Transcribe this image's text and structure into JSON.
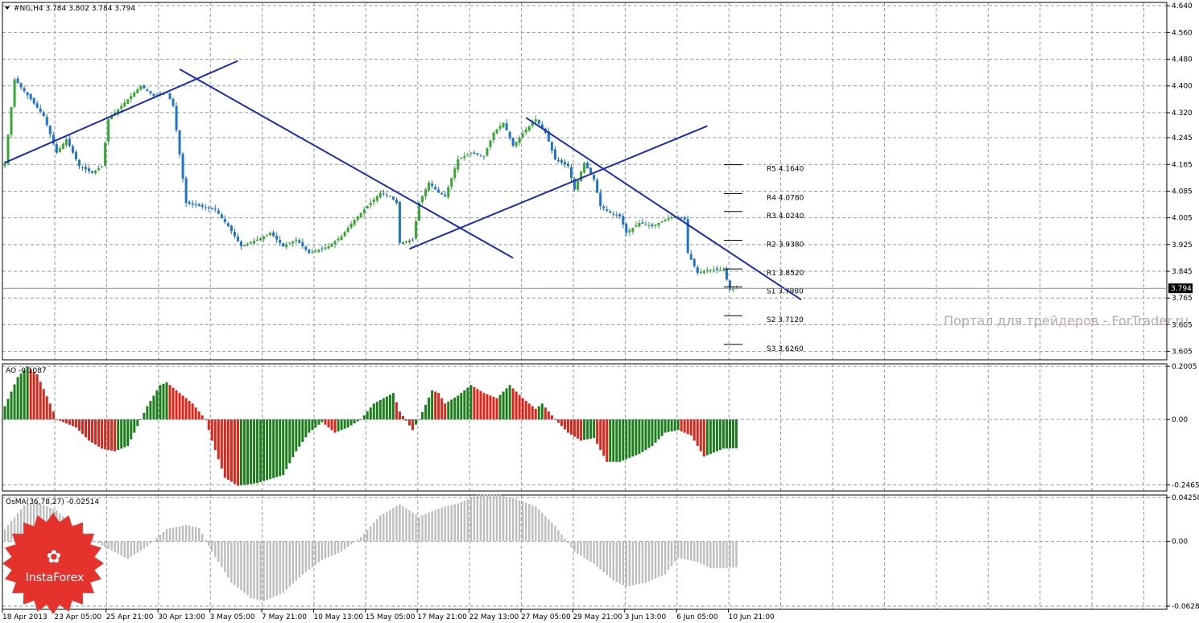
{
  "colors": {
    "background": "#ffffff",
    "grid": "#8a9ab0",
    "bull_candle": "#3aa532",
    "bear_candle": "#1f73c8",
    "trendline": "#1b2bb3",
    "ao_up": "#1c7d1c",
    "ao_down": "#e0241a",
    "osma": "#bdbdbd",
    "watermark": "#bfa9a9",
    "logo": "#e5322d"
  },
  "chart_data": [
    {
      "type": "candlestick",
      "panel": "main",
      "title": "#NG,H4  3.784 3.802 3.784 3.794",
      "ylim": [
        3.58,
        4.65
      ],
      "y_ticks": [
        "4.640",
        "4.560",
        "4.480",
        "4.400",
        "4.320",
        "4.245",
        "4.165",
        "4.085",
        "4.005",
        "3.925",
        "3.845",
        "3.765",
        "3.685",
        "3.605"
      ],
      "current_price": "3.794",
      "x_labels": [
        "18 Apr 2013",
        "23 Apr 05:00",
        "25 Apr 21:00",
        "30 Apr 13:00",
        "3 May 05:00",
        "7 May 21:00",
        "10 May 13:00",
        "15 May 05:00",
        "17 May 21:00",
        "22 May 13:00",
        "27 May 05:00",
        "29 May 21:00",
        "3 Jun 13:00",
        "6 Jun 05:00",
        "10 Jun 21:00"
      ],
      "anchors": [
        [
          0,
          4.17
        ],
        [
          3,
          4.42
        ],
        [
          8,
          4.36
        ],
        [
          12,
          4.31
        ],
        [
          16,
          4.2
        ],
        [
          19,
          4.24
        ],
        [
          23,
          4.16
        ],
        [
          27,
          4.14
        ],
        [
          30,
          4.16
        ],
        [
          32,
          4.3
        ],
        [
          38,
          4.36
        ],
        [
          42,
          4.4
        ],
        [
          46,
          4.37
        ],
        [
          50,
          4.38
        ],
        [
          52,
          4.34
        ],
        [
          56,
          4.05
        ],
        [
          60,
          4.04
        ],
        [
          65,
          4.03
        ],
        [
          69,
          3.98
        ],
        [
          73,
          3.92
        ],
        [
          78,
          3.94
        ],
        [
          82,
          3.96
        ],
        [
          86,
          3.92
        ],
        [
          90,
          3.94
        ],
        [
          94,
          3.9
        ],
        [
          100,
          3.92
        ],
        [
          104,
          3.95
        ],
        [
          108,
          4.0
        ],
        [
          112,
          4.04
        ],
        [
          116,
          4.08
        ],
        [
          119,
          4.07
        ],
        [
          121,
          4.05
        ],
        [
          122,
          3.93
        ],
        [
          126,
          3.94
        ],
        [
          128,
          4.05
        ],
        [
          131,
          4.11
        ],
        [
          134,
          4.08
        ],
        [
          136,
          4.07
        ],
        [
          140,
          4.18
        ],
        [
          144,
          4.2
        ],
        [
          148,
          4.19
        ],
        [
          151,
          4.26
        ],
        [
          154,
          4.29
        ],
        [
          157,
          4.22
        ],
        [
          161,
          4.27
        ],
        [
          164,
          4.3
        ],
        [
          167,
          4.26
        ],
        [
          170,
          4.18
        ],
        [
          174,
          4.16
        ],
        [
          176,
          4.09
        ],
        [
          179,
          4.17
        ],
        [
          182,
          4.12
        ],
        [
          184,
          4.04
        ],
        [
          187,
          4.02
        ],
        [
          190,
          4.01
        ],
        [
          192,
          3.96
        ],
        [
          196,
          3.99
        ],
        [
          200,
          3.98
        ],
        [
          204,
          4.0
        ],
        [
          207,
          4.01
        ],
        [
          210,
          4.0
        ],
        [
          211,
          3.9
        ],
        [
          214,
          3.84
        ],
        [
          218,
          3.85
        ],
        [
          222,
          3.85
        ],
        [
          224,
          3.79
        ],
        [
          226,
          3.794
        ]
      ],
      "pivots": [
        {
          "label": "R5 4.1640",
          "value": 4.164
        },
        {
          "label": "R4 4.0780",
          "value": 4.078
        },
        {
          "label": "R3 4.0240",
          "value": 4.024
        },
        {
          "label": "R2 3.9380",
          "value": 3.938
        },
        {
          "label": "R1 3.8520",
          "value": 3.852
        },
        {
          "label": "S1 3.7980",
          "value": 3.798
        },
        {
          "label": "S2 3.7120",
          "value": 3.712
        },
        {
          "label": "S3 3.6260",
          "value": 3.626
        }
      ],
      "watermark": "Портал для трейдеров - ForTrader.ru"
    },
    {
      "type": "histogram",
      "panel": "AO",
      "title": "AO -0.1087",
      "ylim": [
        -0.27,
        0.21
      ],
      "y_ticks": [
        "0.2005",
        "0.00",
        "-0.2465"
      ],
      "anchors": [
        [
          0,
          0.05
        ],
        [
          4,
          0.16
        ],
        [
          7,
          0.2
        ],
        [
          10,
          0.17
        ],
        [
          14,
          0.06
        ],
        [
          16,
          0.0
        ],
        [
          18,
          -0.01
        ],
        [
          22,
          -0.03
        ],
        [
          26,
          -0.08
        ],
        [
          30,
          -0.11
        ],
        [
          34,
          -0.12
        ],
        [
          38,
          -0.1
        ],
        [
          40,
          -0.05
        ],
        [
          42,
          0.0
        ],
        [
          44,
          0.05
        ],
        [
          48,
          0.13
        ],
        [
          50,
          0.14
        ],
        [
          54,
          0.1
        ],
        [
          58,
          0.06
        ],
        [
          62,
          0.0
        ],
        [
          64,
          -0.08
        ],
        [
          68,
          -0.22
        ],
        [
          72,
          -0.25
        ],
        [
          78,
          -0.24
        ],
        [
          86,
          -0.21
        ],
        [
          90,
          -0.12
        ],
        [
          94,
          -0.05
        ],
        [
          98,
          -0.01
        ],
        [
          102,
          -0.05
        ],
        [
          106,
          -0.03
        ],
        [
          110,
          0.0
        ],
        [
          114,
          0.06
        ],
        [
          120,
          0.1
        ],
        [
          122,
          0.03
        ],
        [
          126,
          -0.04
        ],
        [
          128,
          0.0
        ],
        [
          132,
          0.11
        ],
        [
          134,
          0.1
        ],
        [
          136,
          0.06
        ],
        [
          140,
          0.09
        ],
        [
          144,
          0.13
        ],
        [
          148,
          0.1
        ],
        [
          152,
          0.08
        ],
        [
          156,
          0.13
        ],
        [
          160,
          0.08
        ],
        [
          164,
          0.04
        ],
        [
          166,
          0.06
        ],
        [
          170,
          0.0
        ],
        [
          174,
          -0.05
        ],
        [
          178,
          -0.08
        ],
        [
          182,
          -0.07
        ],
        [
          186,
          -0.16
        ],
        [
          190,
          -0.16
        ],
        [
          196,
          -0.13
        ],
        [
          200,
          -0.1
        ],
        [
          204,
          -0.05
        ],
        [
          208,
          -0.04
        ],
        [
          212,
          -0.06
        ],
        [
          216,
          -0.14
        ],
        [
          222,
          -0.11
        ],
        [
          226,
          -0.1087
        ]
      ]
    },
    {
      "type": "histogram",
      "panel": "OsMA",
      "title": "OsMA(36,78,27) -0.02514",
      "ylim": [
        -0.066,
        0.045
      ],
      "y_ticks": [
        "0.04258",
        "0.00",
        "-0.06285"
      ],
      "anchors": [
        [
          0,
          0.012
        ],
        [
          6,
          0.035
        ],
        [
          10,
          0.038
        ],
        [
          16,
          0.03
        ],
        [
          22,
          0.013
        ],
        [
          30,
          -0.004
        ],
        [
          38,
          -0.017
        ],
        [
          44,
          -0.005
        ],
        [
          50,
          0.012
        ],
        [
          56,
          0.016
        ],
        [
          60,
          0.013
        ],
        [
          64,
          -0.01
        ],
        [
          70,
          -0.04
        ],
        [
          76,
          -0.055
        ],
        [
          80,
          -0.058
        ],
        [
          86,
          -0.05
        ],
        [
          92,
          -0.032
        ],
        [
          98,
          -0.018
        ],
        [
          104,
          -0.01
        ],
        [
          110,
          0.004
        ],
        [
          116,
          0.025
        ],
        [
          122,
          0.036
        ],
        [
          128,
          0.024
        ],
        [
          134,
          0.032
        ],
        [
          140,
          0.037
        ],
        [
          146,
          0.045
        ],
        [
          152,
          0.046
        ],
        [
          158,
          0.041
        ],
        [
          164,
          0.034
        ],
        [
          170,
          0.015
        ],
        [
          176,
          -0.01
        ],
        [
          182,
          -0.022
        ],
        [
          188,
          -0.038
        ],
        [
          192,
          -0.044
        ],
        [
          198,
          -0.04
        ],
        [
          204,
          -0.032
        ],
        [
          208,
          -0.016
        ],
        [
          214,
          -0.02
        ],
        [
          218,
          -0.026
        ],
        [
          222,
          -0.026
        ],
        [
          226,
          -0.02514
        ]
      ]
    }
  ],
  "logo": {
    "text": "InstaForex"
  }
}
